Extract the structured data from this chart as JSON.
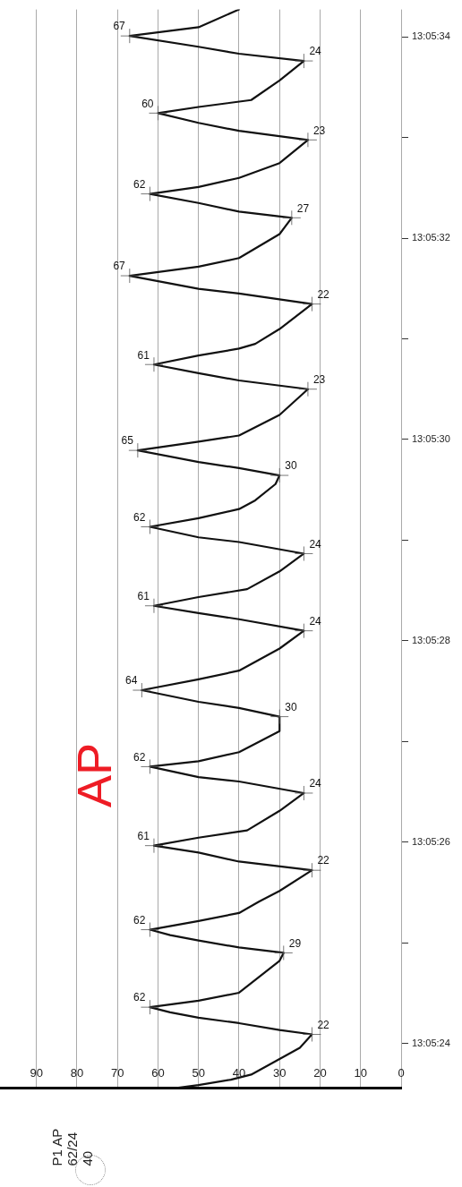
{
  "chart_data": {
    "type": "line",
    "x": [
      55,
      50,
      42,
      37,
      31,
      25,
      22,
      30,
      40,
      50,
      57,
      62,
      50,
      40,
      35,
      30,
      29,
      40,
      50,
      57,
      62,
      50,
      40,
      35,
      30,
      22,
      40,
      50,
      61,
      50,
      38,
      30,
      24,
      40,
      50,
      62,
      50,
      40,
      30,
      30,
      40,
      50,
      64,
      50,
      40,
      30,
      24,
      40,
      50,
      61,
      50,
      38,
      30,
      24,
      40,
      50,
      62,
      50,
      40,
      36,
      31,
      30,
      40,
      50,
      65,
      50,
      40,
      30,
      23,
      40,
      50,
      61,
      50,
      40,
      36,
      30,
      22,
      40,
      50,
      67,
      50,
      40,
      30,
      27,
      40,
      50,
      62,
      50,
      40,
      30,
      23,
      40,
      50,
      60,
      50,
      37,
      30,
      24,
      40,
      50,
      67,
      50,
      40
    ],
    "series": [
      {
        "color": "#111111",
        "values": [
          13.089878,
          13.089885,
          13.0899,
          13.089914,
          13.089951,
          13.089988,
          13.090025,
          13.090037,
          13.090056,
          13.090071,
          13.090086,
          13.0901,
          13.090118,
          13.09014,
          13.090184,
          13.090228,
          13.09025,
          13.090265,
          13.090284,
          13.090299,
          13.090314,
          13.090338,
          13.09036,
          13.090392,
          13.090421,
          13.090478,
          13.090502,
          13.090527,
          13.090546,
          13.090568,
          13.090588,
          13.090642,
          13.090691,
          13.090723,
          13.090735,
          13.090764,
          13.090779,
          13.090804,
          13.090862,
          13.090902,
          13.090926,
          13.090943,
          13.090975,
          13.091005,
          13.091029,
          13.09109,
          13.091139,
          13.091171,
          13.091188,
          13.091208,
          13.091232,
          13.091254,
          13.091303,
          13.091352,
          13.091384,
          13.091397,
          13.091426,
          13.09145,
          13.091475,
          13.091499,
          13.091544,
          13.091568,
          13.091588,
          13.091605,
          13.091637,
          13.091661,
          13.091678,
          13.091735,
          13.091806,
          13.09183,
          13.09185,
          13.091874,
          13.091899,
          13.091918,
          13.091931,
          13.091972,
          13.092041,
          13.09207,
          13.092083,
          13.092119,
          13.092144,
          13.092168,
          13.092234,
          13.092279,
          13.092296,
          13.09232,
          13.092345,
          13.092364,
          13.092389,
          13.09243,
          13.092494,
          13.092519,
          13.092541,
          13.092568,
          13.092585,
          13.092604,
          13.092658,
          13.092712,
          13.092732,
          13.092751,
          13.092781,
          13.092805,
          13.092854
        ]
      }
    ],
    "ylim": [
      13.089878,
      13.092854
    ],
    "yticks": [
      {
        "value": 13.09,
        "label": "13:05:24"
      },
      {
        "value": 13.090278,
        "label": null
      },
      {
        "value": 13.090556,
        "label": "13:05:26"
      },
      {
        "value": 13.090833,
        "label": null
      },
      {
        "value": 13.091111,
        "label": "13:05:28"
      },
      {
        "value": 13.091389,
        "label": null
      },
      {
        "value": 13.091667,
        "label": "13:05:30"
      },
      {
        "value": 13.091944,
        "label": null
      },
      {
        "value": 13.092222,
        "label": "13:05:32"
      },
      {
        "value": 13.0925,
        "label": null
      },
      {
        "value": 13.092778,
        "label": "13:05:34"
      }
    ],
    "xlim": [
      99,
      0
    ],
    "xticks": [
      0,
      10,
      20,
      30,
      40,
      50,
      60,
      70,
      80,
      90
    ],
    "grid": "x",
    "marker": "none",
    "legend": false,
    "annotations": [
      "AP",
      "P1 AP",
      "62/24",
      "40",
      {
        "text": "22",
        "x": 22,
        "y": 13.090025
      },
      {
        "text": "62",
        "x": 62,
        "y": 13.0901
      },
      {
        "text": "29",
        "x": 29,
        "y": 13.09025
      },
      {
        "text": "62",
        "x": 62,
        "y": 13.090314
      },
      {
        "text": "22",
        "x": 22,
        "y": 13.090478
      },
      {
        "text": "61",
        "x": 61,
        "y": 13.090546
      },
      {
        "text": "24",
        "x": 24,
        "y": 13.090691
      },
      {
        "text": "62",
        "x": 62,
        "y": 13.090764
      },
      {
        "text": "30",
        "x": 30,
        "y": 13.090902
      },
      {
        "text": "64",
        "x": 64,
        "y": 13.090975
      },
      {
        "text": "24",
        "x": 24,
        "y": 13.091139
      },
      {
        "text": "61",
        "x": 61,
        "y": 13.091208
      },
      {
        "text": "24",
        "x": 24,
        "y": 13.091352
      },
      {
        "text": "62",
        "x": 62,
        "y": 13.091426
      },
      {
        "text": "30",
        "x": 30,
        "y": 13.091568
      },
      {
        "text": "65",
        "x": 65,
        "y": 13.091637
      },
      {
        "text": "23",
        "x": 23,
        "y": 13.091806
      },
      {
        "text": "61",
        "x": 61,
        "y": 13.091874
      },
      {
        "text": "22",
        "x": 22,
        "y": 13.092041
      },
      {
        "text": "67",
        "x": 67,
        "y": 13.092119
      },
      {
        "text": "27",
        "x": 27,
        "y": 13.092279
      },
      {
        "text": "62",
        "x": 62,
        "y": 13.092345
      },
      {
        "text": "23",
        "x": 23,
        "y": 13.092494
      },
      {
        "text": "60",
        "x": 60,
        "y": 13.092568
      },
      {
        "text": "24",
        "x": 24,
        "y": 13.092712
      },
      {
        "text": "67",
        "x": 67,
        "y": 13.092781
      }
    ]
  }
}
